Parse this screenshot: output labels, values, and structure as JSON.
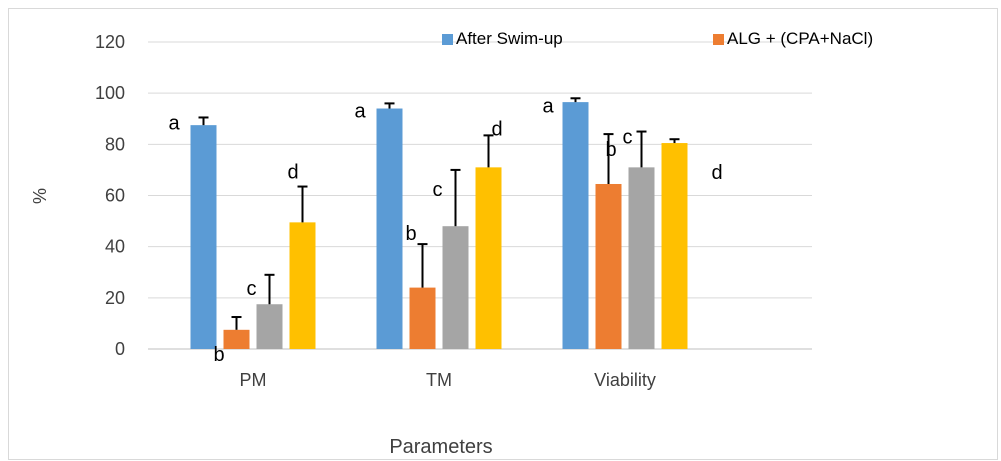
{
  "chart_data": {
    "type": "bar",
    "xlabel": "Parameters",
    "ylabel": "%",
    "ylim": [
      0,
      120
    ],
    "yticks": [
      0,
      20,
      40,
      60,
      80,
      100,
      120
    ],
    "grid": true,
    "legend_position": "top-right",
    "categories": [
      "PM",
      "TM",
      "Viability"
    ],
    "series": [
      {
        "name": "After Swim-up",
        "color": "#5b9bd5",
        "values": [
          87.5,
          94,
          96.5
        ],
        "errors": [
          3,
          2,
          1.5
        ],
        "letters": [
          "a",
          "a",
          "a"
        ]
      },
      {
        "name": "ALG + (CPA+NaCl)",
        "color": "#ed7d31",
        "values": [
          7.5,
          24,
          64.5
        ],
        "errors": [
          5,
          17,
          19.5
        ],
        "letters": [
          "b",
          "b",
          "b"
        ]
      },
      {
        "name": "",
        "color": "#a5a5a5",
        "values": [
          17.5,
          48,
          71
        ],
        "errors": [
          11.5,
          22,
          14
        ],
        "letters": [
          "c",
          "c",
          "c"
        ]
      },
      {
        "name": "",
        "color": "#ffc000",
        "values": [
          49.5,
          71,
          80.5
        ],
        "errors": [
          14,
          12.5,
          1.5
        ],
        "letters": [
          "d",
          "d",
          "d"
        ]
      }
    ]
  }
}
